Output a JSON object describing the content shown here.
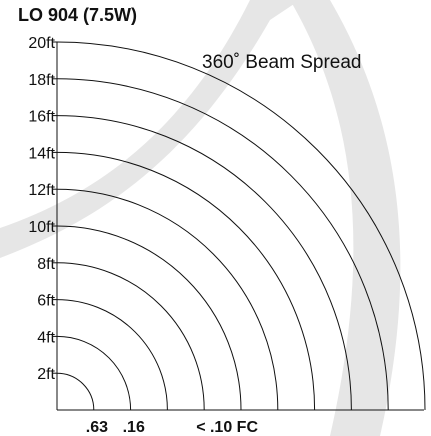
{
  "chart_data": {
    "type": "polar-isofootcandle",
    "title": "LO 904 (7.5W)",
    "annotation": "360˚ Beam Spread",
    "y_tick_labels": [
      "2ft",
      "4ft",
      "6ft",
      "8ft",
      "10ft",
      "12ft",
      "14ft",
      "16ft",
      "18ft",
      "20ft"
    ],
    "y_tick_values": [
      2,
      4,
      6,
      8,
      10,
      12,
      14,
      16,
      18,
      20
    ],
    "ylim": [
      0,
      20
    ],
    "arc_radii_ft": [
      2,
      4,
      6,
      8,
      10,
      12,
      14,
      16,
      18,
      20
    ],
    "footcandle_labels": [
      {
        "text": ".63",
        "x_ft": 2
      },
      {
        "text": ".16",
        "x_ft": 4
      },
      {
        "text": "< .10 FC",
        "x_ft": 8
      }
    ],
    "colors": {
      "line": "#111111",
      "background_shape": "#e6e6e6"
    }
  }
}
